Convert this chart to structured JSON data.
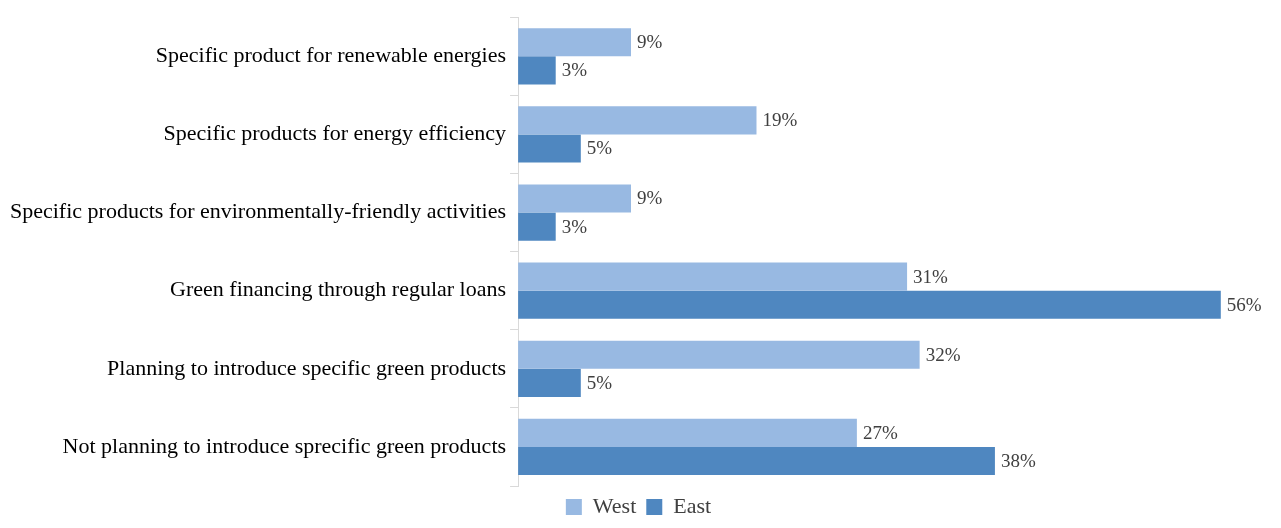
{
  "chart_data": {
    "type": "bar",
    "orientation": "horizontal",
    "categories": [
      "Specific product for renewable energies",
      "Specific products for energy efficiency",
      "Specific products for environmentally-friendly activities",
      "Green financing through regular loans",
      "Planning to introduce specific green products",
      "Not planning to introduce sprecific green products"
    ],
    "series": [
      {
        "name": "West",
        "color": "#98b9e2",
        "values": [
          9,
          19,
          9,
          31,
          32,
          27
        ],
        "value_labels": [
          "9%",
          "19%",
          "9%",
          "31%",
          "32%",
          "27%"
        ]
      },
      {
        "name": "East",
        "color": "#4f87c0",
        "values": [
          3,
          5,
          3,
          56,
          5,
          38
        ],
        "value_labels": [
          "3%",
          "5%",
          "3%",
          "56%",
          "5%",
          "38%"
        ]
      }
    ],
    "legend": "bottom"
  }
}
